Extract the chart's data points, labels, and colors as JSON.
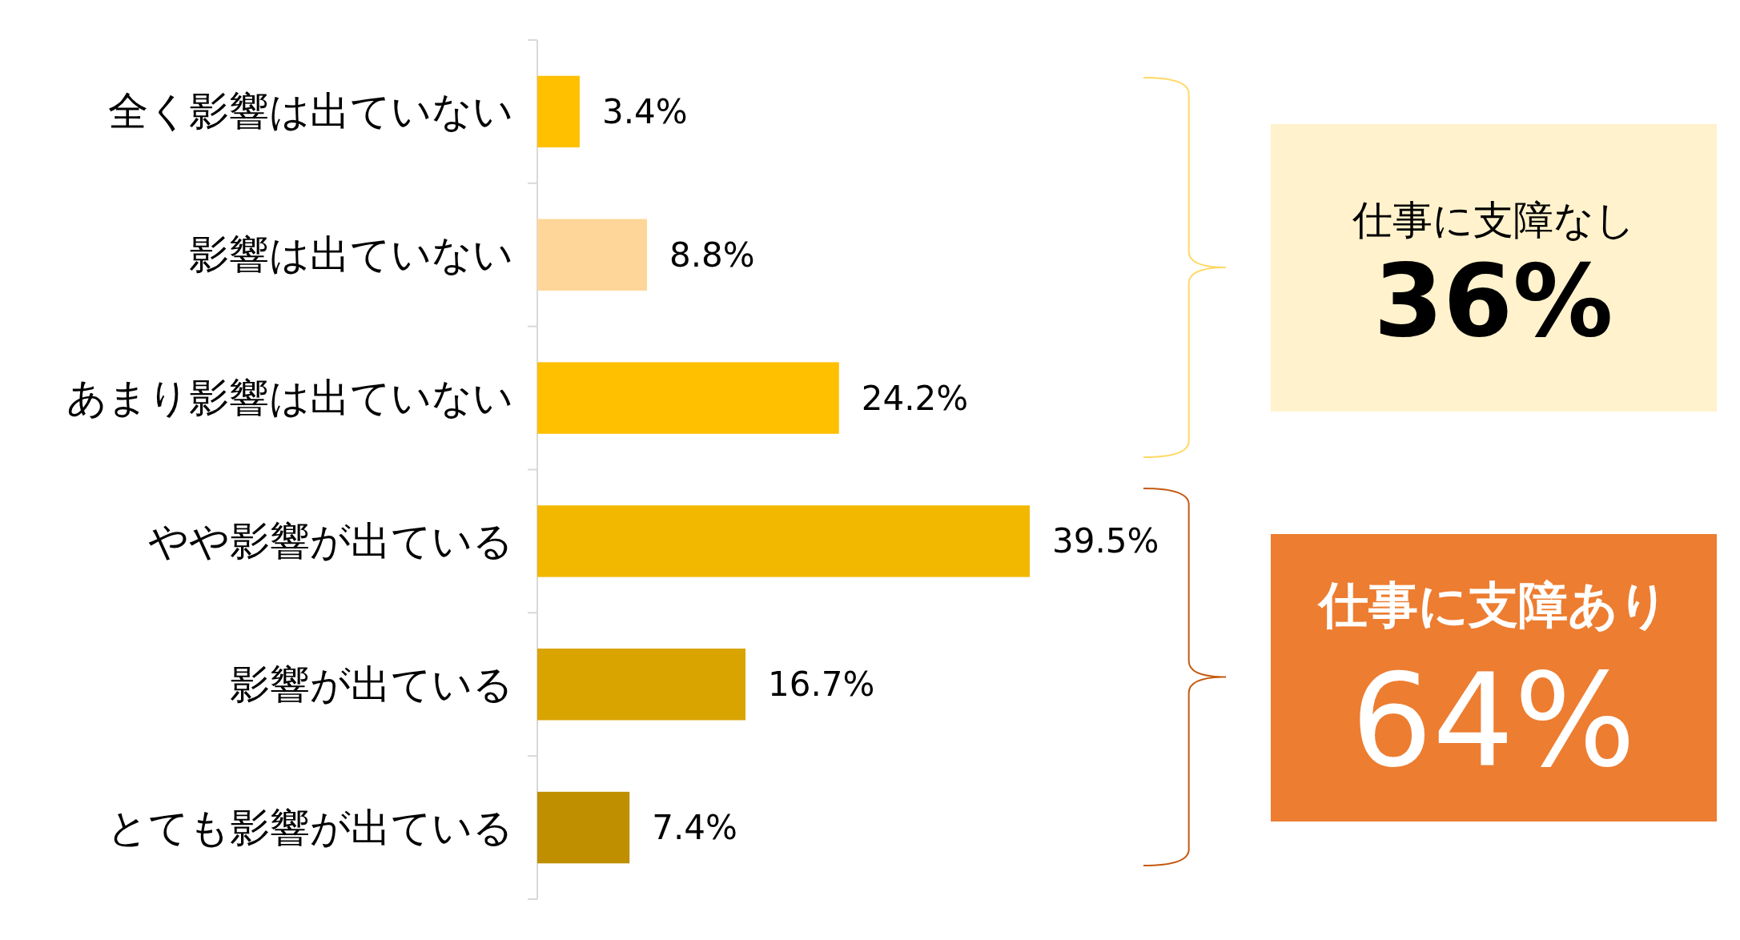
{
  "chart_data": {
    "type": "bar",
    "orientation": "horizontal",
    "categories": [
      "全く影響は出ていない",
      "影響は出ていない",
      "あまり影響は出ていない",
      "やや影響が出ている",
      "影響が出ている",
      "とても影響が出ている"
    ],
    "values": [
      3.4,
      8.8,
      24.2,
      39.5,
      16.7,
      7.4
    ],
    "colors": [
      "#ffc000",
      "#ffd699",
      "#ffc000",
      "#f2b800",
      "#d9a300",
      "#bf8f00"
    ],
    "value_labels": [
      "3.4%",
      "8.8%",
      "24.2%",
      "39.5%",
      "16.7%",
      "7.4%"
    ],
    "annotations": [
      "仕事に支障なし",
      "36%",
      "仕事に支障あり",
      "64%"
    ]
  }
}
